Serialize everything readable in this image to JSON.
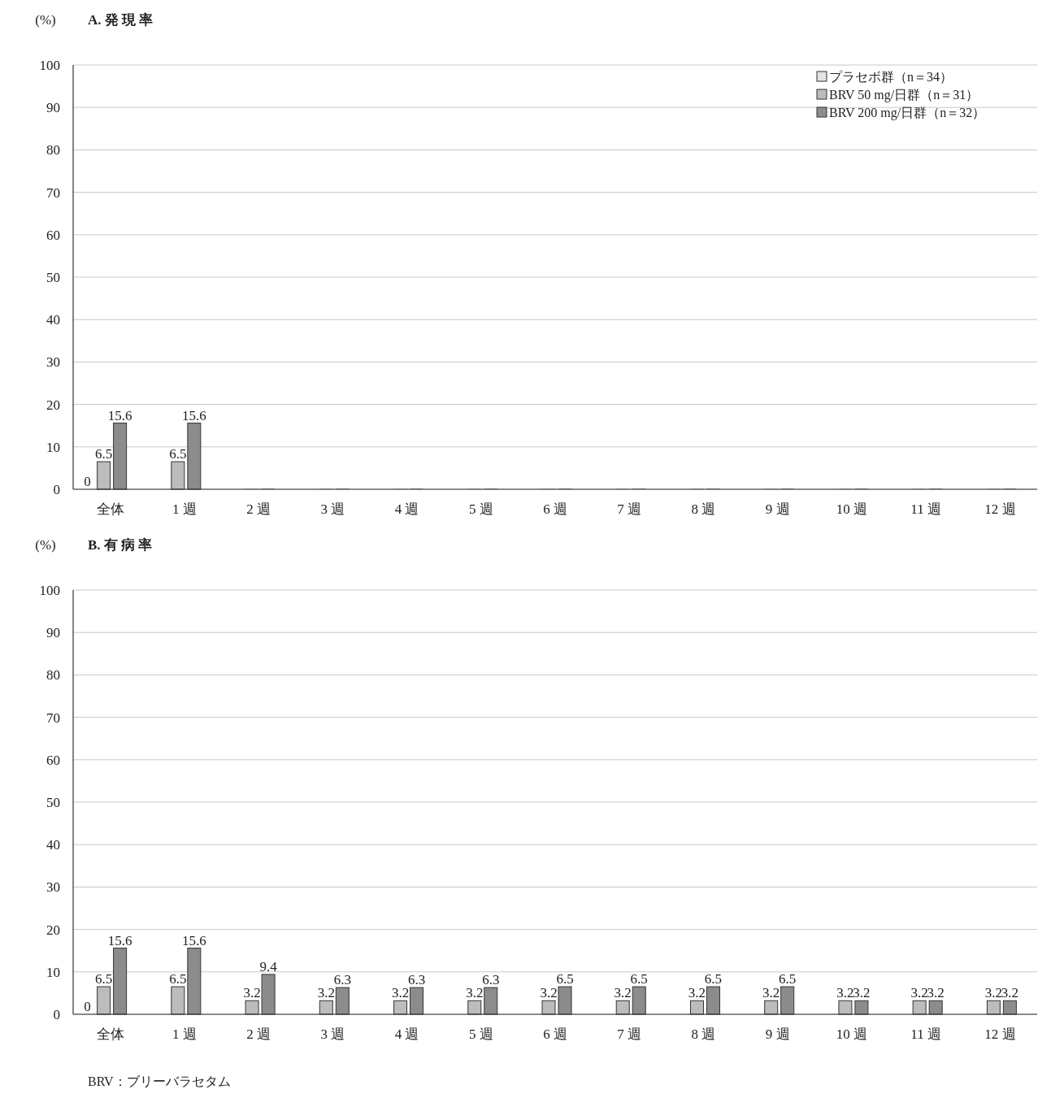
{
  "chart_data": [
    {
      "type": "bar",
      "title": "A. 発 現 率",
      "ylabel": "(%)",
      "categories": [
        "全体",
        "1 週",
        "2 週",
        "3 週",
        "4 週",
        "5 週",
        "6 週",
        "7 週",
        "8 週",
        "9 週",
        "10 週",
        "11 週",
        "12 週"
      ],
      "series": [
        {
          "name": "プラセボ群（n＝34）",
          "color": "#e3e3e3",
          "values": [
            0,
            0,
            0,
            0,
            0,
            0,
            0,
            0,
            0,
            0,
            0,
            0,
            0
          ],
          "value_labels": [
            "0",
            null,
            null,
            null,
            null,
            null,
            null,
            null,
            null,
            null,
            null,
            null,
            null
          ]
        },
        {
          "name": "BRV 50 mg/日群（n＝31）",
          "color": "#bcbcbe",
          "values": [
            6.5,
            6.5,
            0,
            0,
            0,
            0,
            0,
            0,
            0,
            0,
            0,
            0,
            0
          ],
          "value_labels": [
            "6.5",
            "6.5",
            null,
            null,
            null,
            null,
            null,
            null,
            null,
            null,
            null,
            null,
            null
          ]
        },
        {
          "name": "BRV 200 mg/日群（n＝32）",
          "color": "#8c8c8e",
          "values": [
            15.6,
            15.6,
            0,
            0,
            0,
            0,
            0,
            0,
            0,
            0,
            0,
            0,
            0
          ],
          "value_labels": [
            "15.6",
            "15.6",
            null,
            null,
            null,
            null,
            null,
            null,
            null,
            null,
            null,
            null,
            null
          ]
        }
      ],
      "ylim": [
        0,
        100
      ],
      "yticks": [
        0,
        10,
        20,
        30,
        40,
        50,
        60,
        70,
        80,
        90,
        100
      ],
      "grid": "y",
      "legend": "top right"
    },
    {
      "type": "bar",
      "title": "B. 有 病 率",
      "ylabel": "(%)",
      "categories": [
        "全体",
        "1 週",
        "2 週",
        "3 週",
        "4 週",
        "5 週",
        "6 週",
        "7 週",
        "8 週",
        "9 週",
        "10 週",
        "11 週",
        "12 週"
      ],
      "series": [
        {
          "color": "#e3e3e3",
          "values": [
            0,
            0,
            0,
            0,
            0,
            0,
            0,
            0,
            0,
            0,
            0,
            0,
            0
          ],
          "value_labels": [
            "0",
            null,
            null,
            null,
            null,
            null,
            null,
            null,
            null,
            null,
            null,
            null,
            null
          ]
        },
        {
          "color": "#bcbcbe",
          "values": [
            6.5,
            6.5,
            3.2,
            3.2,
            3.2,
            3.2,
            3.2,
            3.2,
            3.2,
            3.2,
            3.2,
            3.2,
            3.2
          ],
          "value_labels": [
            "6.5",
            "6.5",
            "3.2",
            "3.2",
            "3.2",
            "3.2",
            "3.2",
            "3.2",
            "3.2",
            "3.2",
            "3.2",
            "3.2",
            "3.2"
          ]
        },
        {
          "color": "#8c8c8e",
          "values": [
            15.6,
            15.6,
            9.4,
            6.3,
            6.3,
            6.3,
            6.5,
            6.5,
            6.5,
            6.5,
            3.2,
            3.2,
            3.2
          ],
          "value_labels": [
            "15.6",
            "15.6",
            "9.4",
            "6.3",
            "6.3",
            "6.3",
            "6.5",
            "6.5",
            "6.5",
            "6.5",
            "3.2",
            "3.2",
            "3.2"
          ]
        }
      ],
      "ylim": [
        0,
        100
      ],
      "yticks": [
        0,
        10,
        20,
        30,
        40,
        50,
        60,
        70,
        80,
        90,
        100
      ],
      "grid": "y",
      "legend": false,
      "annotations": [
        "BRV：ブリーバラセタム"
      ]
    }
  ]
}
